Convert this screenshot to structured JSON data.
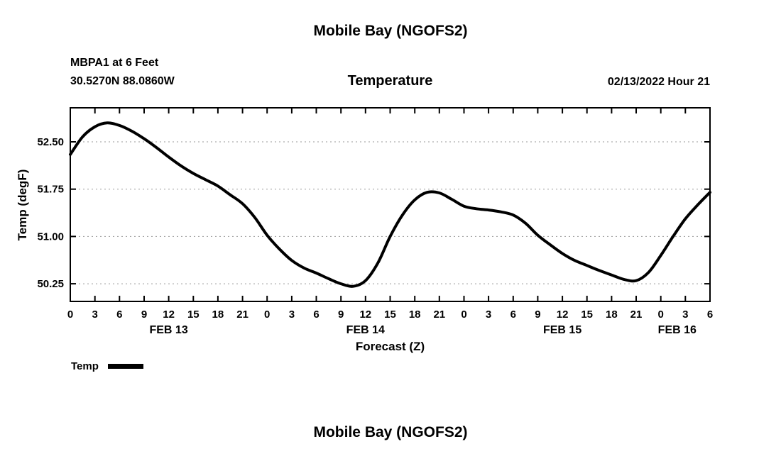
{
  "page": {
    "top_title": "Mobile Bay (NGOFS2)",
    "bottom_title": "Mobile Bay (NGOFS2)"
  },
  "chart": {
    "station_line1": "MBPA1 at 6 Feet",
    "station_line2": "30.5270N  88.0860W",
    "title": "Temperature",
    "timestamp": "02/13/2022 Hour 21",
    "ylabel": "Temp (degF)",
    "xlabel": "Forecast (Z)",
    "legend_label": "Temp",
    "line_color": "#000000"
  },
  "chart_data": {
    "type": "line",
    "title": "Temperature",
    "xlabel": "Forecast (Z)",
    "ylabel": "Temp (degF)",
    "x_unit": "hours from FEB 13 00Z",
    "xlim": [
      0,
      78
    ],
    "ylim": [
      49.97,
      53.04
    ],
    "grid": "horizontal-dashed",
    "legend_position": "bottom-left",
    "xtick_interval_hours": 3,
    "xtick_labels": [
      "0",
      "3",
      "6",
      "9",
      "12",
      "15",
      "18",
      "21",
      "0",
      "3",
      "6",
      "9",
      "12",
      "15",
      "18",
      "21",
      "0",
      "3",
      "6",
      "9",
      "12",
      "15",
      "18",
      "21",
      "0",
      "3",
      "6"
    ],
    "ytick_values": [
      52.5,
      51.75,
      51.0,
      50.25
    ],
    "ytick_labels": [
      "52.50",
      "51.75",
      "51.00",
      "50.25"
    ],
    "day_labels": [
      {
        "label": "FEB 13",
        "hour": 12
      },
      {
        "label": "FEB 14",
        "hour": 36
      },
      {
        "label": "FEB 15",
        "hour": 60
      },
      {
        "label": "FEB 16",
        "hour": 74
      }
    ],
    "series": [
      {
        "name": "Temp",
        "color": "#000000",
        "x": [
          0,
          1.5,
          3,
          4.5,
          6,
          7.5,
          9,
          10.5,
          12,
          13.5,
          15,
          16.5,
          18,
          19.5,
          21,
          22.5,
          24,
          25.5,
          27,
          28.5,
          30,
          31.5,
          33,
          34.5,
          36,
          37.5,
          39,
          40.5,
          42,
          43.5,
          45,
          46.5,
          48,
          49.5,
          51,
          52.5,
          54,
          55.5,
          57,
          58.5,
          60,
          61.5,
          63,
          64.5,
          66,
          67.5,
          69,
          70.5,
          72,
          73.5,
          75,
          76.5,
          78
        ],
        "values": [
          52.3,
          52.58,
          52.74,
          52.8,
          52.76,
          52.67,
          52.55,
          52.41,
          52.26,
          52.12,
          52.0,
          51.9,
          51.8,
          51.66,
          51.52,
          51.3,
          51.02,
          50.8,
          50.62,
          50.5,
          50.42,
          50.33,
          50.25,
          50.21,
          50.3,
          50.58,
          51.0,
          51.34,
          51.58,
          51.7,
          51.69,
          51.59,
          51.48,
          51.44,
          51.42,
          51.39,
          51.34,
          51.21,
          51.02,
          50.87,
          50.73,
          50.62,
          50.54,
          50.46,
          50.39,
          50.32,
          50.3,
          50.43,
          50.7,
          51.0,
          51.28,
          51.5,
          51.7
        ]
      }
    ]
  }
}
